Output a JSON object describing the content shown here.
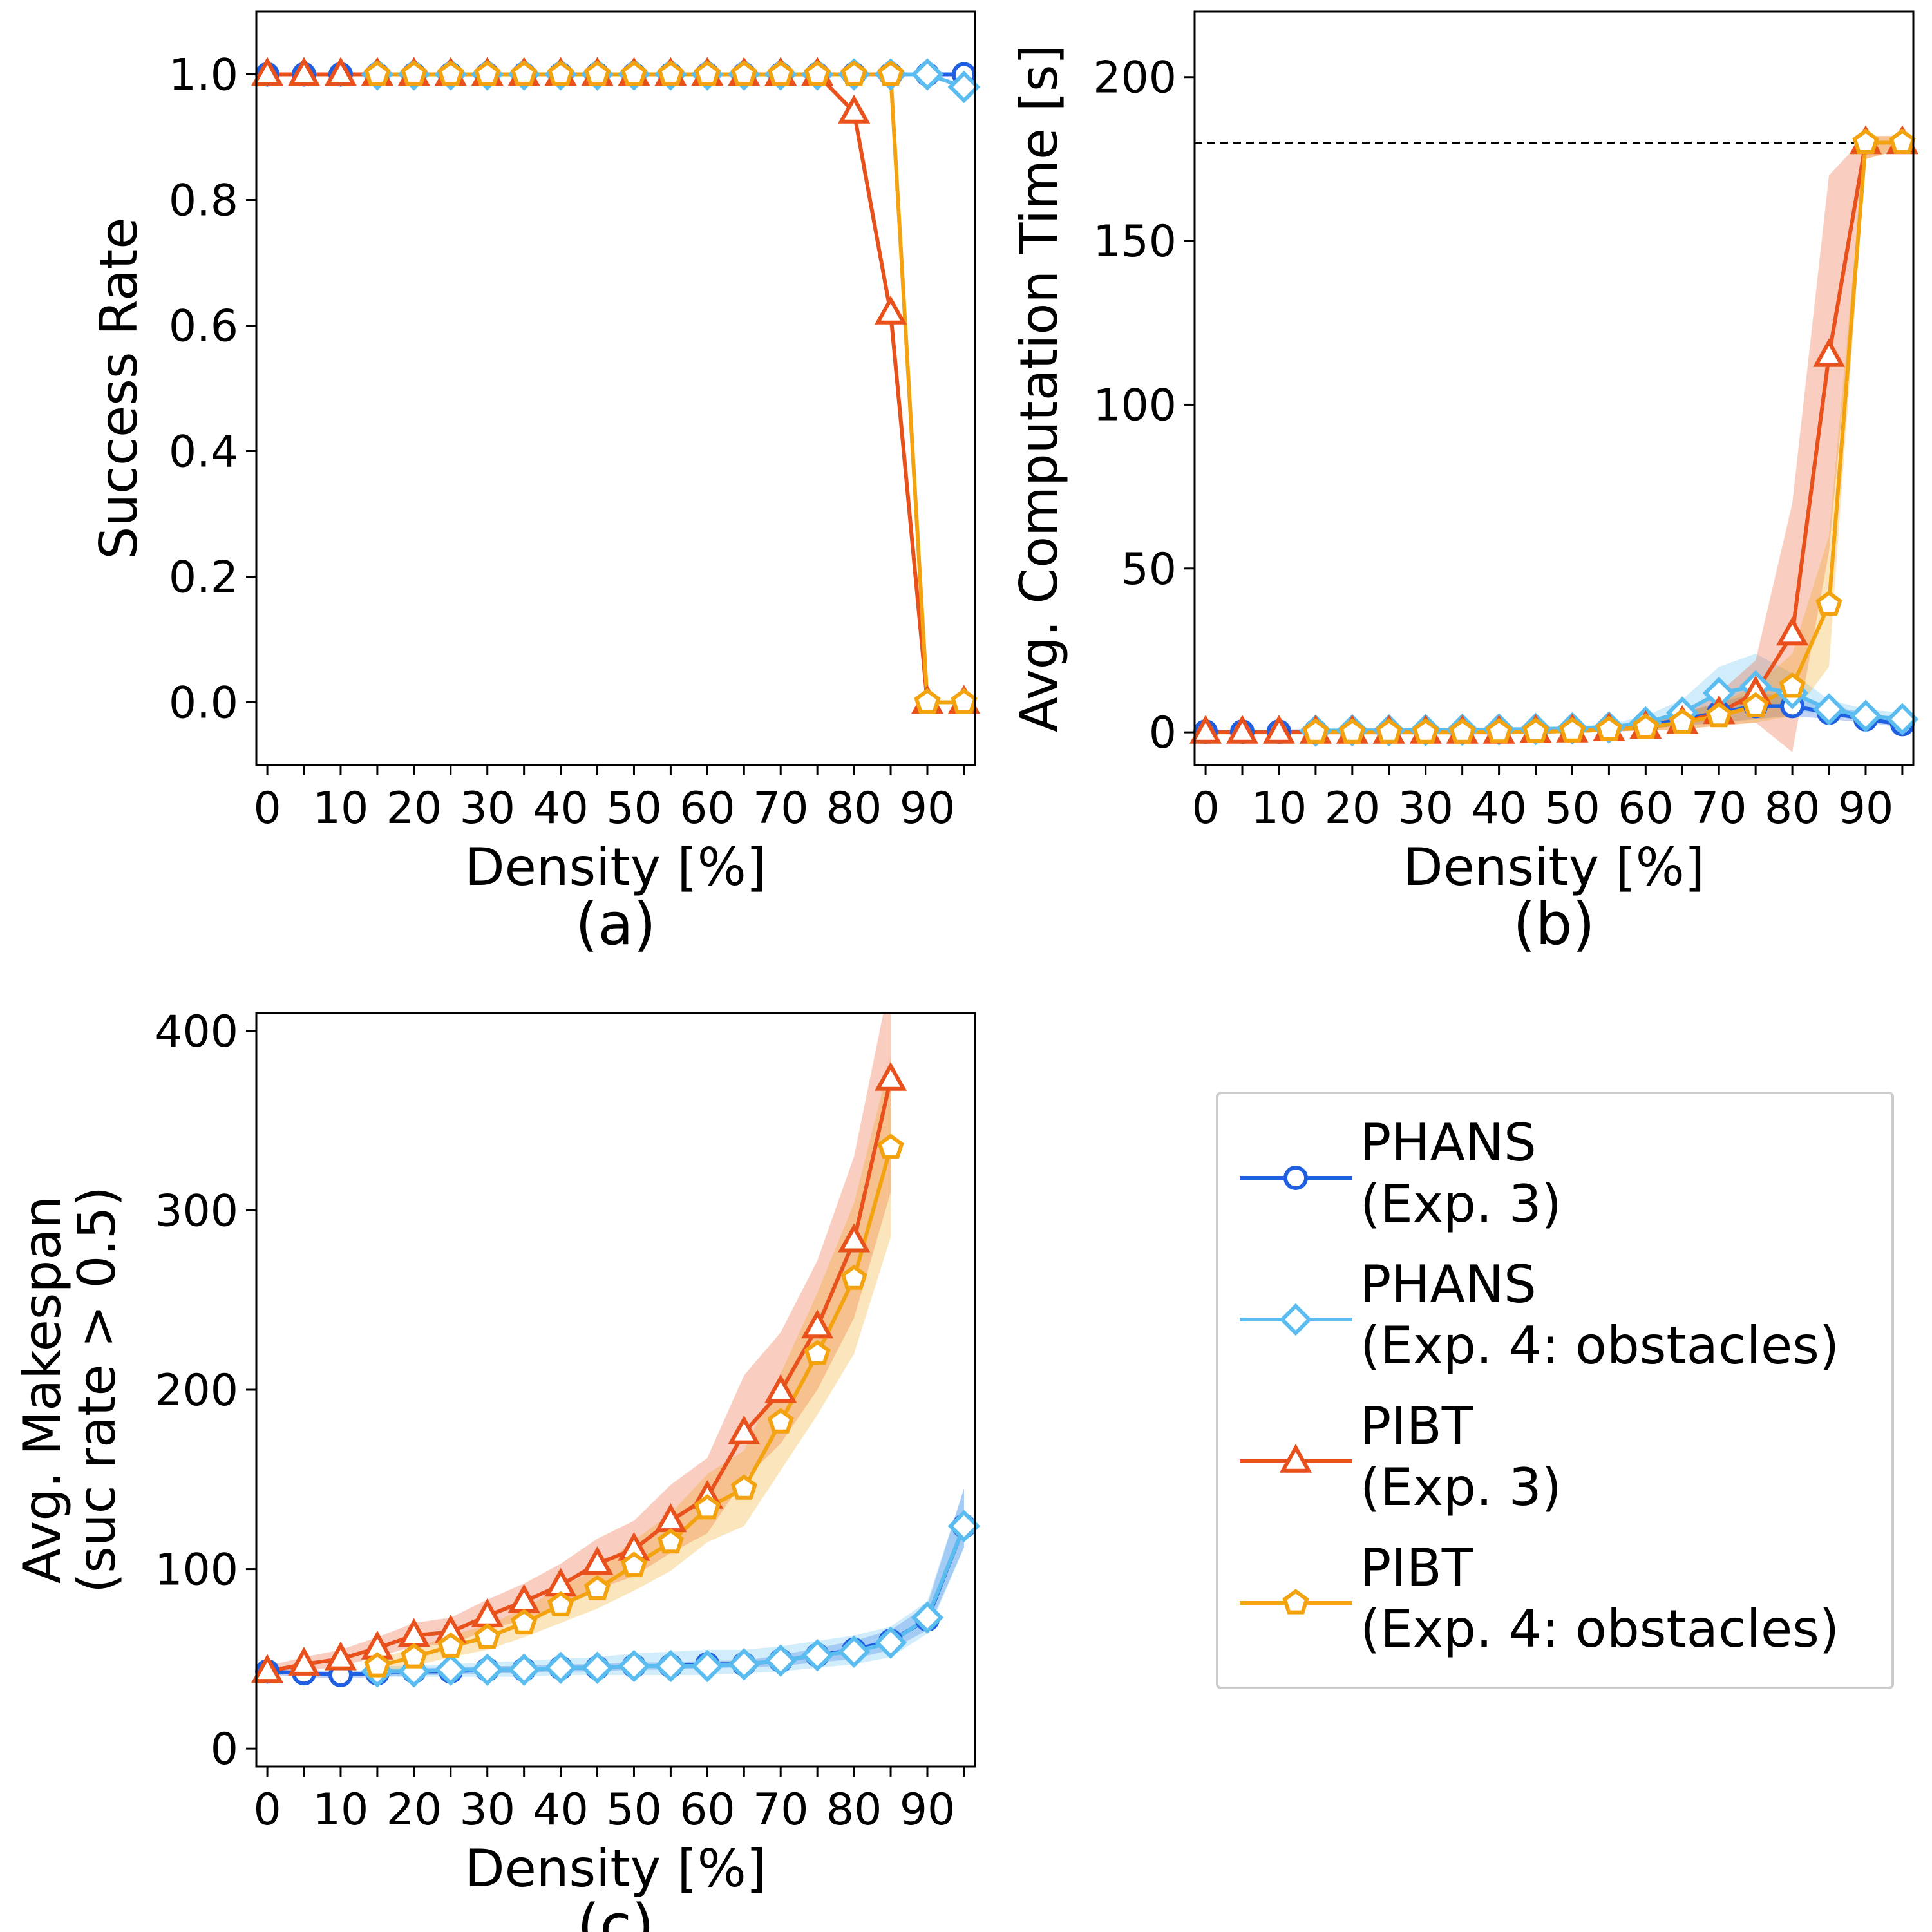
{
  "series_style": [
    {
      "color": "#1f5fe0",
      "band": "#1f5fe0",
      "marker": "circle"
    },
    {
      "color": "#5bbcf0",
      "band": "#5bbcf0",
      "marker": "diamond"
    },
    {
      "color": "#e8501c",
      "band": "#e8501c",
      "marker": "triangle"
    },
    {
      "color": "#f2a30f",
      "band": "#f2a30f",
      "marker": "pentagon"
    }
  ],
  "legend": {
    "entries": [
      {
        "line1": "PHANS",
        "line2": "(Exp. 3)"
      },
      {
        "line1": "PHANS",
        "line2": "(Exp. 4: obstacles)"
      },
      {
        "line1": "PIBT",
        "line2": "(Exp. 3)"
      },
      {
        "line1": "PIBT",
        "line2": "(Exp. 4: obstacles)"
      }
    ]
  },
  "chart_data": [
    {
      "id": "a",
      "type": "line",
      "caption": "(a)",
      "xlabel": "Density [%]",
      "ylabel": "Success Rate",
      "xlim": [
        -1.5,
        96.5
      ],
      "ylim": [
        -0.1,
        1.1
      ],
      "xticks": [
        0,
        10,
        20,
        30,
        40,
        50,
        60,
        70,
        80,
        90
      ],
      "yticks": [
        0.0,
        0.2,
        0.4,
        0.6,
        0.8,
        1.0
      ],
      "ytick_labels": [
        "0.0",
        "0.2",
        "0.4",
        "0.6",
        "0.8",
        "1.0"
      ],
      "series": [
        {
          "name": "PHANS (Exp. 3)",
          "x": [
            0,
            5,
            10,
            15,
            20,
            25,
            30,
            35,
            40,
            45,
            50,
            55,
            60,
            65,
            70,
            75,
            80,
            85,
            90,
            95
          ],
          "y": [
            1,
            1,
            1,
            1,
            1,
            1,
            1,
            1,
            1,
            1,
            1,
            1,
            1,
            1,
            1,
            1,
            1,
            1,
            1,
            1
          ]
        },
        {
          "name": "PHANS (Exp. 4: obstacles)",
          "x": [
            15,
            20,
            25,
            30,
            35,
            40,
            45,
            50,
            55,
            60,
            65,
            70,
            75,
            80,
            85,
            90,
            95
          ],
          "y": [
            1,
            1,
            1,
            1,
            1,
            1,
            1,
            1,
            1,
            1,
            1,
            1,
            1,
            1,
            1,
            1,
            0.98
          ]
        },
        {
          "name": "PIBT (Exp. 3)",
          "x": [
            0,
            5,
            10,
            15,
            20,
            25,
            30,
            35,
            40,
            45,
            50,
            55,
            60,
            65,
            70,
            75,
            80,
            85,
            90,
            95
          ],
          "y": [
            1,
            1,
            1,
            1,
            1,
            1,
            1,
            1,
            1,
            1,
            1,
            1,
            1,
            1,
            1,
            1,
            0.94,
            0.62,
            0,
            0
          ]
        },
        {
          "name": "PIBT (Exp. 4: obstacles)",
          "x": [
            15,
            20,
            25,
            30,
            35,
            40,
            45,
            50,
            55,
            60,
            65,
            70,
            75,
            80,
            85,
            90,
            95
          ],
          "y": [
            1,
            1,
            1,
            1,
            1,
            1,
            1,
            1,
            1,
            1,
            1,
            1,
            1,
            1,
            1,
            0,
            0
          ]
        }
      ]
    },
    {
      "id": "b",
      "type": "line",
      "caption": "(b)",
      "xlabel": "Density [%]",
      "ylabel": "Avg. Computation Time [s]",
      "xlim": [
        -1.5,
        96.5
      ],
      "ylim": [
        -10,
        220
      ],
      "xticks": [
        0,
        10,
        20,
        30,
        40,
        50,
        60,
        70,
        80,
        90
      ],
      "yticks": [
        0,
        50,
        100,
        150,
        200
      ],
      "ytick_labels": [
        "0",
        "50",
        "100",
        "150",
        "200"
      ],
      "hline": 180,
      "series": [
        {
          "name": "PHANS (Exp. 3)",
          "x": [
            0,
            5,
            10,
            15,
            20,
            25,
            30,
            35,
            40,
            45,
            50,
            55,
            60,
            65,
            70,
            75,
            80,
            85,
            90,
            95
          ],
          "y": [
            0.2,
            0.2,
            0.2,
            0.3,
            0.3,
            0.3,
            0.4,
            0.4,
            0.5,
            0.6,
            0.8,
            1.2,
            2,
            4,
            6,
            8,
            8,
            6,
            4,
            2.5
          ],
          "lo": [
            0.1,
            0.1,
            0.1,
            0.1,
            0.1,
            0.1,
            0.2,
            0.2,
            0.3,
            0.3,
            0.5,
            0.8,
            1,
            2,
            3,
            4,
            5,
            4,
            3,
            1.5
          ],
          "hi": [
            0.3,
            0.3,
            0.3,
            0.4,
            0.4,
            0.4,
            0.6,
            0.6,
            0.7,
            0.9,
            1.2,
            1.8,
            3,
            6,
            9,
            12,
            11,
            8,
            6,
            4
          ]
        },
        {
          "name": "PHANS (Exp. 4: obstacles)",
          "x": [
            15,
            20,
            25,
            30,
            35,
            40,
            45,
            50,
            55,
            60,
            65,
            70,
            75,
            80,
            85,
            90,
            95
          ],
          "y": [
            0.5,
            0.6,
            0.6,
            0.7,
            0.8,
            0.9,
            1,
            1.2,
            1.5,
            3,
            6,
            12,
            14,
            12,
            7,
            5,
            4
          ],
          "lo": [
            0.3,
            0.3,
            0.3,
            0.4,
            0.5,
            0.5,
            0.6,
            0.7,
            1,
            2,
            3,
            6,
            8,
            7,
            5,
            3.5,
            2.5
          ],
          "hi": [
            0.8,
            0.9,
            0.9,
            1,
            1.2,
            1.3,
            1.5,
            1.8,
            2.5,
            5,
            10,
            20,
            24,
            18,
            10,
            7,
            6
          ]
        },
        {
          "name": "PIBT (Exp. 3)",
          "x": [
            0,
            5,
            10,
            15,
            20,
            25,
            30,
            35,
            40,
            45,
            50,
            55,
            60,
            65,
            70,
            75,
            80,
            85,
            90,
            95
          ],
          "y": [
            0,
            0,
            0,
            0,
            0,
            0,
            0,
            0,
            0,
            0.2,
            0.4,
            0.8,
            1.5,
            3,
            6,
            12,
            30,
            115,
            180,
            180
          ],
          "lo": [
            0,
            0,
            0,
            0,
            0,
            0,
            0,
            0,
            0,
            0,
            0.1,
            0.3,
            0.5,
            1,
            2,
            3,
            -6,
            55,
            175,
            178
          ],
          "hi": [
            0.1,
            0.1,
            0.1,
            0.1,
            0.1,
            0.1,
            0.1,
            0.1,
            0.2,
            0.4,
            0.8,
            1.5,
            3,
            6,
            12,
            22,
            70,
            170,
            182,
            182
          ]
        },
        {
          "name": "PIBT (Exp. 4: obstacles)",
          "x": [
            15,
            20,
            25,
            30,
            35,
            40,
            45,
            50,
            55,
            60,
            65,
            70,
            75,
            80,
            85,
            90,
            95
          ],
          "y": [
            0,
            0,
            0,
            0,
            0,
            0.1,
            0.2,
            0.4,
            0.8,
            1.5,
            3,
            5,
            8,
            14,
            39,
            180,
            180
          ],
          "lo": [
            0,
            0,
            0,
            0,
            0,
            0,
            0,
            0.1,
            0.3,
            0.5,
            1,
            2,
            3,
            5,
            20,
            175,
            178
          ],
          "hi": [
            0.1,
            0.1,
            0.1,
            0.1,
            0.2,
            0.3,
            0.5,
            0.8,
            1.5,
            3,
            6,
            9,
            14,
            24,
            60,
            182,
            182
          ]
        }
      ]
    },
    {
      "id": "c",
      "type": "line",
      "caption": "(c)",
      "xlabel": "Density [%]",
      "ylabel_line1": "Avg. Makespan",
      "ylabel_line2": "(suc rate > 0.5)",
      "xlim": [
        -1.5,
        96.5
      ],
      "ylim": [
        -10,
        410
      ],
      "xticks": [
        0,
        10,
        20,
        30,
        40,
        50,
        60,
        70,
        80,
        90
      ],
      "yticks": [
        0,
        100,
        200,
        300,
        400
      ],
      "ytick_labels": [
        "0",
        "100",
        "200",
        "300",
        "400"
      ],
      "series": [
        {
          "name": "PHANS (Exp. 3)",
          "x": [
            0,
            5,
            10,
            15,
            20,
            25,
            30,
            35,
            40,
            45,
            50,
            55,
            60,
            65,
            70,
            75,
            80,
            85,
            90,
            95
          ],
          "y": [
            43,
            42,
            41,
            42,
            43,
            43,
            44,
            44,
            45,
            45,
            46,
            46,
            47,
            47,
            49,
            52,
            55,
            60,
            72,
            124
          ],
          "lo": [
            41,
            40,
            39,
            40,
            41,
            41,
            42,
            42,
            43,
            43,
            44,
            44,
            45,
            45,
            46,
            48,
            50,
            55,
            66,
            112
          ],
          "hi": [
            45,
            44,
            43,
            44,
            45,
            45,
            46,
            46,
            47,
            47,
            48,
            48,
            49,
            49,
            52,
            56,
            60,
            66,
            80,
            145
          ]
        },
        {
          "name": "PHANS (Exp. 4: obstacles)",
          "x": [
            15,
            20,
            25,
            30,
            35,
            40,
            45,
            50,
            55,
            60,
            65,
            70,
            75,
            80,
            85,
            90,
            95
          ],
          "y": [
            43,
            43,
            44,
            44,
            44,
            45,
            45,
            46,
            46,
            46,
            47,
            49,
            52,
            54,
            59,
            73,
            124
          ],
          "lo": [
            40,
            40,
            40,
            40,
            40,
            41,
            41,
            41,
            41,
            41,
            42,
            43,
            45,
            47,
            51,
            64,
            112
          ],
          "hi": [
            46,
            46,
            47,
            48,
            49,
            50,
            51,
            53,
            54,
            55,
            55,
            57,
            60,
            63,
            68,
            82,
            145
          ]
        },
        {
          "name": "PIBT (Exp. 3)",
          "x": [
            0,
            5,
            10,
            15,
            20,
            25,
            30,
            35,
            40,
            45,
            50,
            55,
            60,
            65,
            70,
            75,
            80,
            85
          ],
          "y": [
            43,
            47,
            50,
            56,
            63,
            65,
            74,
            82,
            91,
            103,
            111,
            127,
            140,
            176,
            199,
            235,
            283,
            373
          ],
          "lo": [
            40,
            43,
            46,
            51,
            57,
            58,
            66,
            72,
            80,
            89,
            96,
            109,
            120,
            150,
            170,
            200,
            240,
            310
          ],
          "hi": [
            46,
            51,
            55,
            62,
            70,
            73,
            83,
            92,
            103,
            117,
            127,
            147,
            162,
            208,
            232,
            272,
            330,
            430
          ]
        },
        {
          "name": "PIBT (Exp. 4: obstacles)",
          "x": [
            15,
            20,
            25,
            30,
            35,
            40,
            45,
            50,
            55,
            60,
            65,
            70,
            75,
            80,
            85
          ],
          "y": [
            46,
            51,
            57,
            62,
            70,
            80,
            89,
            102,
            115,
            134,
            145,
            182,
            220,
            262,
            335
          ],
          "lo": [
            42,
            46,
            51,
            55,
            62,
            70,
            78,
            88,
            99,
            115,
            124,
            155,
            186,
            220,
            285
          ],
          "hi": [
            50,
            56,
            63,
            69,
            78,
            90,
            100,
            116,
            131,
            153,
            166,
            209,
            254,
            304,
            385
          ]
        }
      ]
    }
  ]
}
